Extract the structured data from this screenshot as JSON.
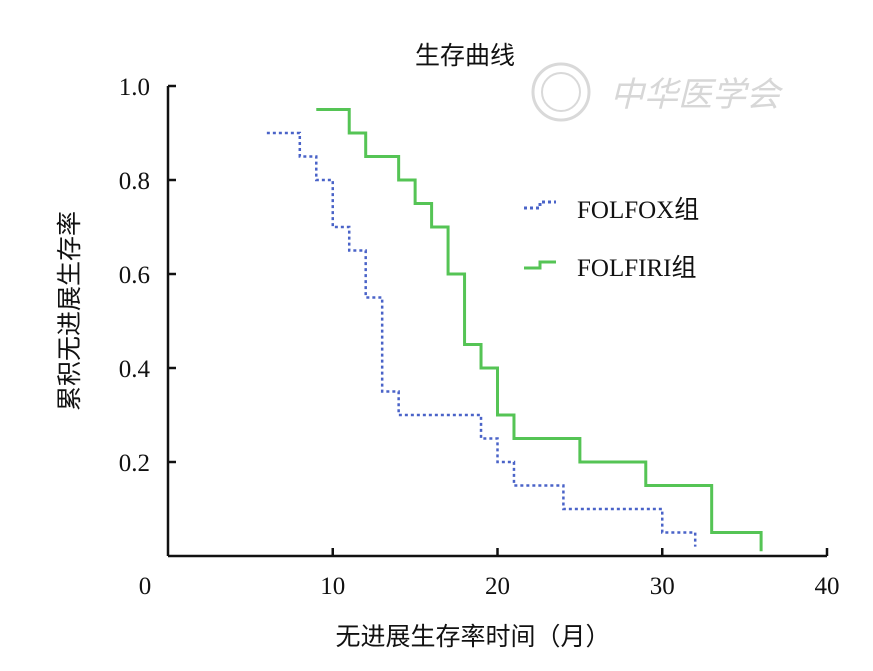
{
  "chart_data": {
    "type": "line",
    "step": true,
    "title": "生存曲线",
    "xlabel": "无进展生存率时间（月）",
    "ylabel": "累积无进展生存率",
    "xlim": [
      0,
      40
    ],
    "ylim": [
      0,
      1.0
    ],
    "xticks": [
      0,
      10,
      20,
      30,
      40
    ],
    "yticks": [
      0.2,
      0.4,
      0.6,
      0.8,
      1.0
    ],
    "xtick_labels": [
      "0",
      "10",
      "20",
      "30",
      "40"
    ],
    "ytick_labels": [
      "0.2",
      "0.4",
      "0.6",
      "0.8",
      "1.0"
    ],
    "legend_position": "right-middle",
    "series": [
      {
        "name": "FOLFOX组",
        "color": "#4a63c8",
        "style": "dotted",
        "x": [
          6,
          8,
          9,
          10,
          11,
          12,
          13,
          14,
          19,
          20,
          21,
          24,
          30,
          32
        ],
        "y": [
          0.9,
          0.85,
          0.8,
          0.7,
          0.65,
          0.55,
          0.35,
          0.3,
          0.25,
          0.2,
          0.15,
          0.1,
          0.05,
          0.02
        ]
      },
      {
        "name": "FOLFIRI组",
        "color": "#55c455",
        "style": "solid",
        "x": [
          9,
          11,
          12,
          14,
          15,
          16,
          17,
          18,
          19,
          20,
          21,
          25,
          29,
          33,
          36
        ],
        "y": [
          0.95,
          0.9,
          0.85,
          0.8,
          0.75,
          0.7,
          0.6,
          0.45,
          0.4,
          0.3,
          0.25,
          0.2,
          0.15,
          0.05,
          0.01
        ]
      }
    ]
  },
  "watermark": {
    "text": "中华医学会"
  }
}
